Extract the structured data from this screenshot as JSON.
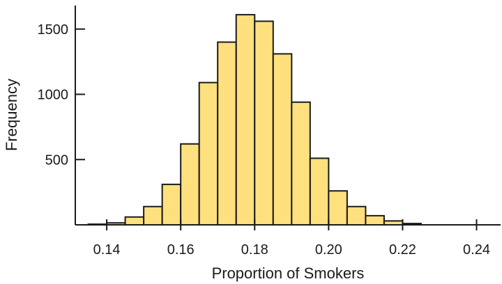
{
  "chart_data": {
    "type": "bar",
    "title": "",
    "xlabel": "Proportion of Smokers",
    "ylabel": "Frequency",
    "bin_width": 0.005,
    "bins": [
      {
        "x0": 0.135,
        "x1": 0.14,
        "count": 5
      },
      {
        "x0": 0.14,
        "x1": 0.145,
        "count": 15
      },
      {
        "x0": 0.145,
        "x1": 0.15,
        "count": 60
      },
      {
        "x0": 0.15,
        "x1": 0.155,
        "count": 140
      },
      {
        "x0": 0.155,
        "x1": 0.16,
        "count": 310
      },
      {
        "x0": 0.16,
        "x1": 0.165,
        "count": 620
      },
      {
        "x0": 0.165,
        "x1": 0.17,
        "count": 1090
      },
      {
        "x0": 0.17,
        "x1": 0.175,
        "count": 1400
      },
      {
        "x0": 0.175,
        "x1": 0.18,
        "count": 1610
      },
      {
        "x0": 0.18,
        "x1": 0.185,
        "count": 1560
      },
      {
        "x0": 0.185,
        "x1": 0.19,
        "count": 1310
      },
      {
        "x0": 0.19,
        "x1": 0.195,
        "count": 940
      },
      {
        "x0": 0.195,
        "x1": 0.2,
        "count": 510
      },
      {
        "x0": 0.2,
        "x1": 0.205,
        "count": 260
      },
      {
        "x0": 0.205,
        "x1": 0.21,
        "count": 140
      },
      {
        "x0": 0.21,
        "x1": 0.215,
        "count": 70
      },
      {
        "x0": 0.215,
        "x1": 0.22,
        "count": 30
      },
      {
        "x0": 0.22,
        "x1": 0.225,
        "count": 10
      }
    ],
    "xticks": [
      0.14,
      0.16,
      0.18,
      0.2,
      0.22,
      0.24
    ],
    "xtick_labels": [
      "0.14",
      "0.16",
      "0.18",
      "0.20",
      "0.22",
      "0.24"
    ],
    "yticks": [
      500,
      1000,
      1500
    ],
    "ytick_labels": [
      "500",
      "1000",
      "1500"
    ],
    "xlim": [
      0.1315,
      0.2465
    ],
    "ylim": [
      0,
      1680
    ],
    "grid": false,
    "colors": {
      "bar_fill": "#FFE07F",
      "bar_stroke": "#1a1a1a"
    }
  }
}
